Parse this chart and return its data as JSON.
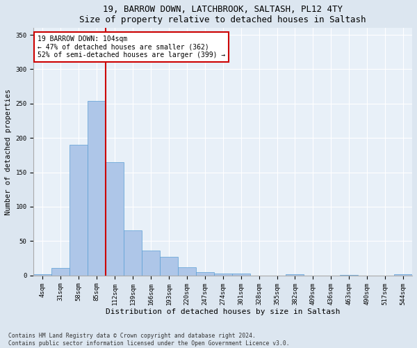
{
  "title1": "19, BARROW DOWN, LATCHBROOK, SALTASH, PL12 4TY",
  "title2": "Size of property relative to detached houses in Saltash",
  "xlabel": "Distribution of detached houses by size in Saltash",
  "ylabel": "Number of detached properties",
  "bar_labels": [
    "4sqm",
    "31sqm",
    "58sqm",
    "85sqm",
    "112sqm",
    "139sqm",
    "166sqm",
    "193sqm",
    "220sqm",
    "247sqm",
    "274sqm",
    "301sqm",
    "328sqm",
    "355sqm",
    "382sqm",
    "409sqm",
    "436sqm",
    "463sqm",
    "490sqm",
    "517sqm",
    "544sqm"
  ],
  "bar_values": [
    2,
    11,
    190,
    254,
    165,
    65,
    36,
    27,
    12,
    5,
    3,
    3,
    0,
    0,
    2,
    0,
    0,
    1,
    0,
    0,
    2
  ],
  "bar_color": "#aec6e8",
  "bar_edge_color": "#5a9fd4",
  "vline_x_index": 3.5,
  "vline_color": "#cc0000",
  "annotation_text": "19 BARROW DOWN: 104sqm\n← 47% of detached houses are smaller (362)\n52% of semi-detached houses are larger (399) →",
  "annotation_box_color": "#ffffff",
  "annotation_box_edge": "#cc0000",
  "ylim": [
    0,
    360
  ],
  "yticks": [
    0,
    50,
    100,
    150,
    200,
    250,
    300,
    350
  ],
  "footnote": "Contains HM Land Registry data © Crown copyright and database right 2024.\nContains public sector information licensed under the Open Government Licence v3.0.",
  "bg_color": "#dce6f0",
  "plot_bg_color": "#e8f0f8",
  "title1_fontsize": 9,
  "title2_fontsize": 9,
  "xlabel_fontsize": 8,
  "ylabel_fontsize": 7.5,
  "tick_fontsize": 6.5,
  "annot_fontsize": 7,
  "footnote_fontsize": 5.8
}
